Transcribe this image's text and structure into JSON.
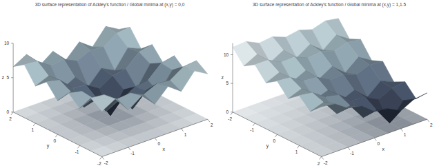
{
  "chart_data": [
    {
      "type": "surfc",
      "title": "3D surface representation of Ackley's function / Global minima at (x,y) = 0,0",
      "x_label": "x",
      "y_label": "y",
      "z_label": "z",
      "x": [
        -2,
        -1.5,
        -1,
        -0.5,
        0,
        0.5,
        1,
        1.5,
        2
      ],
      "y": [
        -2,
        -1.5,
        -1,
        -0.5,
        0,
        0.5,
        1,
        1.5,
        2
      ],
      "z": [
        [
          6.6,
          7.7,
          5.4,
          6.8,
          4.9,
          6.8,
          5.4,
          7.7,
          6.6
        ],
        [
          7.7,
          7.5,
          6.2,
          6.4,
          5.5,
          6.4,
          6.2,
          7.5,
          7.7
        ],
        [
          5.4,
          6.2,
          3.6,
          4.6,
          2.6,
          4.6,
          3.6,
          6.2,
          5.4
        ],
        [
          6.8,
          6.4,
          4.6,
          4.3,
          3.1,
          4.3,
          4.6,
          6.4,
          6.8
        ],
        [
          4.9,
          5.5,
          2.6,
          3.1,
          0,
          3.1,
          2.6,
          5.5,
          4.9
        ],
        [
          6.8,
          6.4,
          4.6,
          4.3,
          3.1,
          4.3,
          4.6,
          6.4,
          6.8
        ],
        [
          5.4,
          6.2,
          3.6,
          4.6,
          2.6,
          4.6,
          3.6,
          6.2,
          5.4
        ],
        [
          7.7,
          7.5,
          6.2,
          6.4,
          5.5,
          6.4,
          6.2,
          7.5,
          7.7
        ],
        [
          6.6,
          7.7,
          5.4,
          6.8,
          4.9,
          6.8,
          5.4,
          7.7,
          6.6
        ]
      ],
      "xlim": [
        -2,
        2
      ],
      "ylim": [
        -2,
        2
      ],
      "zlim": [
        0,
        10
      ],
      "xticks": [
        -2,
        -1,
        0,
        1,
        2
      ],
      "yticks": [
        -2,
        -1,
        0,
        1,
        2
      ],
      "zticks": [
        0,
        5,
        10
      ]
    },
    {
      "type": "surfc",
      "title": "3D surface representation of Ackley's function / Global minima at (x,y) = 1,1.5",
      "x_label": "x",
      "y_label": "y",
      "z_label": "z",
      "x": [
        -2,
        -1.5,
        -1,
        -0.5,
        0,
        0.5,
        1,
        1.5,
        2
      ],
      "y": [
        -2,
        -1.5,
        -1,
        -0.5,
        0,
        0.5,
        1,
        1.5,
        2
      ],
      "z": [
        [
          11.3,
          11.5,
          10.4,
          10.7,
          9.8,
          10.2,
          9.5,
          10.2,
          9.8
        ],
        [
          9.0,
          10.2,
          8.0,
          9.3,
          7.2,
          8.7,
          6.9,
          8.7,
          7.2
        ],
        [
          10.2,
          10.2,
          9.0,
          9.1,
          8.1,
          8.4,
          7.7,
          8.4,
          8.1
        ],
        [
          8.0,
          9.0,
          6.6,
          7.7,
          5.4,
          6.8,
          4.9,
          6.8,
          5.4
        ],
        [
          9.3,
          9.1,
          7.7,
          7.5,
          6.2,
          6.4,
          5.5,
          6.4,
          6.2
        ],
        [
          7.2,
          8.1,
          5.4,
          6.2,
          3.6,
          4.6,
          2.6,
          4.6,
          3.6
        ],
        [
          8.7,
          8.4,
          6.8,
          6.4,
          4.6,
          4.3,
          3.1,
          4.3,
          4.6
        ],
        [
          6.9,
          7.7,
          4.9,
          5.5,
          2.6,
          3.1,
          0,
          3.1,
          2.6
        ],
        [
          8.7,
          8.4,
          6.8,
          6.4,
          4.6,
          4.3,
          3.1,
          4.3,
          4.6
        ]
      ],
      "xlim": [
        -2,
        2
      ],
      "ylim": [
        2,
        -2
      ],
      "zlim": [
        0,
        12
      ],
      "xticks": [
        -2,
        -1,
        0,
        1,
        2
      ],
      "yticks": [
        -2,
        -1,
        0,
        1,
        2
      ],
      "zticks": [
        0,
        5,
        10
      ]
    }
  ]
}
